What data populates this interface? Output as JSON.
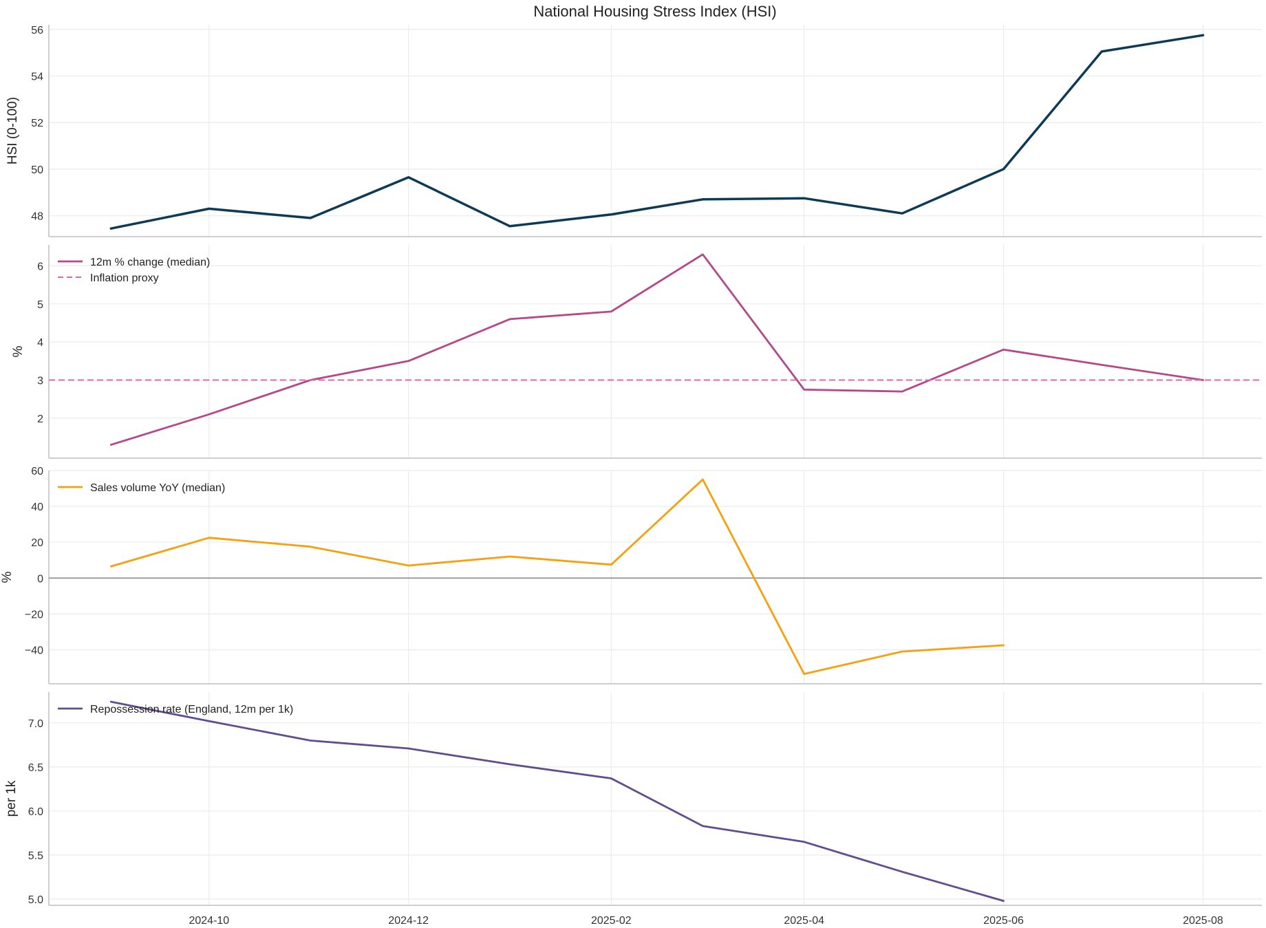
{
  "chart_data": {
    "type": "line",
    "title": "National Housing Stress Index (HSI)",
    "x_ticks": [
      "2024-10",
      "2024-12",
      "2025-02",
      "2025-04",
      "2025-06",
      "2025-08"
    ],
    "x_range": [
      "2024-08-13",
      "2025-08-19"
    ],
    "grid": true,
    "panels": [
      {
        "id": "hsi",
        "ylabel": "HSI (0-100)",
        "ylim": [
          47.1,
          56.2
        ],
        "y_ticks": [
          48,
          50,
          52,
          54,
          56
        ],
        "y_tick_decimals": 0,
        "legend": null,
        "series": [
          {
            "name": "",
            "color": "#0d3b57",
            "style": "solid",
            "x": [
              "2024-09-01",
              "2024-10-01",
              "2024-11-01",
              "2024-12-01",
              "2025-01-01",
              "2025-02-01",
              "2025-03-01",
              "2025-04-01",
              "2025-05-01",
              "2025-06-01",
              "2025-07-01",
              "2025-08-01"
            ],
            "y": [
              47.45,
              48.3,
              47.9,
              49.65,
              47.55,
              48.05,
              48.7,
              48.75,
              48.1,
              50.0,
              55.05,
              55.75
            ]
          }
        ]
      },
      {
        "id": "price-change",
        "ylabel": "%",
        "ylim": [
          0.95,
          6.55
        ],
        "y_ticks": [
          2,
          3,
          4,
          5,
          6
        ],
        "y_tick_decimals": 0,
        "legend": "top-left",
        "series": [
          {
            "name": "12m % change (median)",
            "color": "#b5478a",
            "style": "solid",
            "x": [
              "2024-09-01",
              "2024-10-01",
              "2024-11-01",
              "2024-12-01",
              "2025-01-01",
              "2025-02-01",
              "2025-03-01",
              "2025-04-01",
              "2025-05-01",
              "2025-06-01",
              "2025-07-01",
              "2025-08-01"
            ],
            "y": [
              1.3,
              2.1,
              3.0,
              3.5,
              4.6,
              4.8,
              6.3,
              2.75,
              2.7,
              3.8,
              3.4,
              3.0
            ]
          },
          {
            "name": "Inflation proxy",
            "color": "#cf6fa6",
            "style": "dashed",
            "hline": 3.0
          }
        ]
      },
      {
        "id": "sales-volume",
        "ylabel": "%",
        "ylim": [
          -59,
          60
        ],
        "y_ticks": [
          -40,
          -20,
          0,
          20,
          40,
          60
        ],
        "y_tick_decimals": 0,
        "legend": "top-left",
        "zero_line": true,
        "series": [
          {
            "name": "Sales volume YoY (median)",
            "color": "#f5a00f",
            "style": "solid",
            "x": [
              "2024-09-01",
              "2024-10-01",
              "2024-11-01",
              "2024-12-01",
              "2025-01-01",
              "2025-02-01",
              "2025-03-01",
              "2025-04-01",
              "2025-05-01",
              "2025-06-01"
            ],
            "y": [
              6.5,
              22.5,
              17.5,
              7.0,
              12.0,
              7.5,
              55.0,
              -53.5,
              -41.0,
              -37.5
            ]
          }
        ]
      },
      {
        "id": "repossession",
        "ylabel": "per 1k",
        "ylim": [
          4.93,
          7.35
        ],
        "y_ticks": [
          5.0,
          5.5,
          6.0,
          6.5,
          7.0
        ],
        "y_tick_decimals": 1,
        "legend": "top-left",
        "series": [
          {
            "name": "Repossession rate (England, 12m per 1k)",
            "color": "#634b91",
            "style": "solid",
            "x": [
              "2024-09-01",
              "2024-10-01",
              "2024-11-01",
              "2024-12-01",
              "2025-01-01",
              "2025-02-01",
              "2025-03-01",
              "2025-04-01",
              "2025-05-01",
              "2025-06-01"
            ],
            "y": [
              7.24,
              7.02,
              6.8,
              6.71,
              6.53,
              6.37,
              5.83,
              5.65,
              5.31,
              4.98
            ]
          }
        ]
      }
    ]
  }
}
